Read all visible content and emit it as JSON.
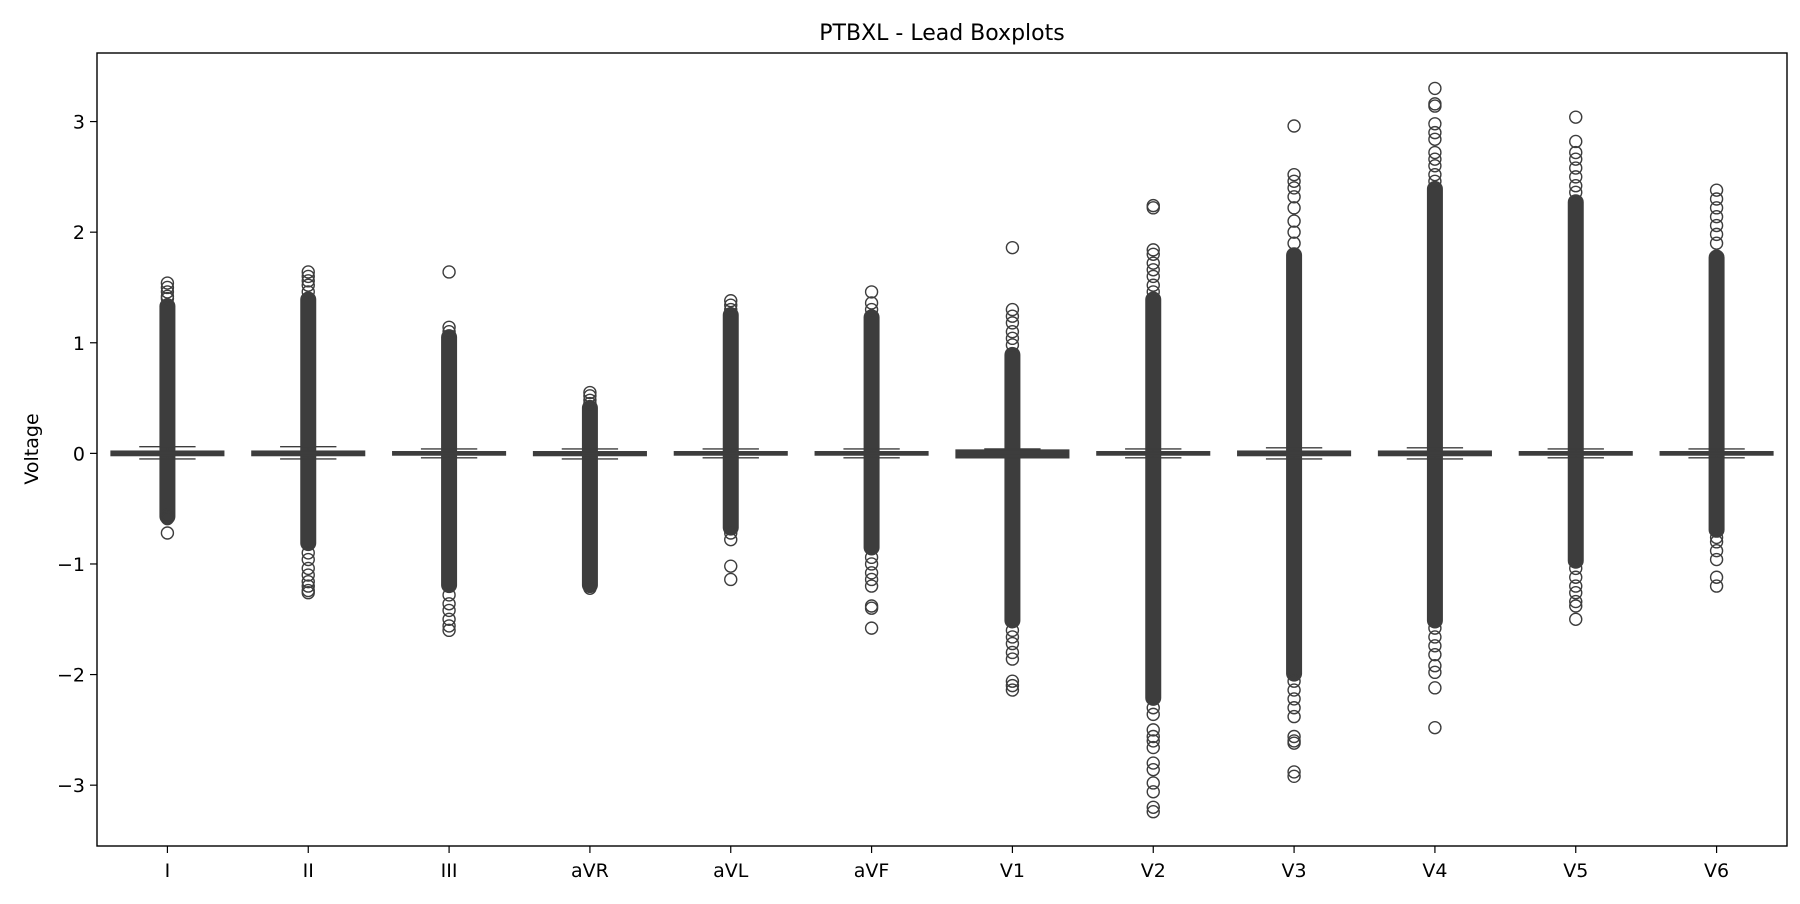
{
  "chart_data": {
    "type": "box",
    "title": "PTBXL - Lead Boxplots",
    "xlabel": "",
    "ylabel": "Voltage",
    "ylim": [
      -3.55,
      3.62
    ],
    "yticks": [
      3,
      2,
      1,
      0,
      -1,
      -2,
      -3
    ],
    "ytick_labels": [
      "3",
      "2",
      "1",
      "0",
      "−1",
      "−2",
      "−3"
    ],
    "grid": false,
    "legend": "none",
    "colors": {
      "box": "#3d3d3d",
      "axis": "#000000",
      "background": "#ffffff"
    },
    "categories": [
      "I",
      "II",
      "III",
      "aVR",
      "aVL",
      "aVF",
      "V1",
      "V2",
      "V3",
      "V4",
      "V5",
      "V6"
    ],
    "boxes": [
      {
        "category": "I",
        "q1": -0.02,
        "median": 0.0,
        "q3": 0.02,
        "whisker_low": -0.05,
        "whisker_high": 0.06,
        "flier_band": [
          -0.58,
          1.34
        ],
        "fliers": [
          1.54,
          1.5,
          1.46,
          1.42,
          1.4,
          -0.56,
          -0.59,
          -0.72
        ]
      },
      {
        "category": "II",
        "q1": -0.02,
        "median": 0.0,
        "q3": 0.02,
        "whisker_low": -0.05,
        "whisker_high": 0.06,
        "flier_band": [
          -0.82,
          1.4
        ],
        "fliers": [
          1.64,
          1.6,
          1.56,
          1.52,
          1.46,
          -0.9,
          -0.96,
          -1.04,
          -1.1,
          -1.16,
          -1.2,
          -1.24,
          -1.26
        ]
      },
      {
        "category": "III",
        "q1": -0.015,
        "median": 0.0,
        "q3": 0.015,
        "whisker_low": -0.04,
        "whisker_high": 0.04,
        "flier_band": [
          -1.2,
          1.06
        ],
        "fliers": [
          1.64,
          1.14,
          1.1,
          -1.28,
          -1.36,
          -1.42,
          -1.5,
          -1.56,
          -1.6
        ]
      },
      {
        "category": "aVR",
        "q1": -0.02,
        "median": 0.0,
        "q3": 0.015,
        "whisker_low": -0.05,
        "whisker_high": 0.04,
        "flier_band": [
          -1.2,
          0.42
        ],
        "fliers": [
          0.55,
          0.52,
          0.48,
          0.45,
          -1.22
        ]
      },
      {
        "category": "aVL",
        "q1": -0.015,
        "median": 0.0,
        "q3": 0.015,
        "whisker_low": -0.04,
        "whisker_high": 0.04,
        "flier_band": [
          -0.68,
          1.26
        ],
        "fliers": [
          1.38,
          1.34,
          1.3,
          -0.72,
          -0.78,
          -1.02,
          -1.14
        ]
      },
      {
        "category": "aVF",
        "q1": -0.015,
        "median": 0.0,
        "q3": 0.015,
        "whisker_low": -0.04,
        "whisker_high": 0.04,
        "flier_band": [
          -0.86,
          1.24
        ],
        "fliers": [
          1.46,
          1.36,
          1.3,
          -0.94,
          -1.0,
          -1.08,
          -1.14,
          -1.2,
          -1.38,
          -1.4,
          -1.58
        ]
      },
      {
        "category": "V1",
        "q1": -0.04,
        "median": 0.0,
        "q3": 0.03,
        "whisker_low": -0.04,
        "whisker_high": 0.04,
        "flier_band": [
          -1.52,
          0.9
        ],
        "fliers": [
          1.86,
          1.3,
          1.24,
          1.18,
          1.1,
          1.04,
          0.98,
          -1.6,
          -1.66,
          -1.72,
          -1.8,
          -1.86,
          -2.06,
          -2.1,
          -2.14
        ]
      },
      {
        "category": "V2",
        "q1": -0.015,
        "median": 0.0,
        "q3": 0.015,
        "whisker_low": -0.04,
        "whisker_high": 0.04,
        "flier_band": [
          -2.22,
          1.4
        ],
        "fliers": [
          2.24,
          2.22,
          1.84,
          1.8,
          1.72,
          1.66,
          1.6,
          1.52,
          1.46,
          -2.3,
          -2.36,
          -2.5,
          -2.56,
          -2.6,
          -2.66,
          -2.8,
          -2.86,
          -2.98,
          -3.06,
          -3.2,
          -3.24
        ]
      },
      {
        "category": "V3",
        "q1": -0.02,
        "median": 0.0,
        "q3": 0.02,
        "whisker_low": -0.05,
        "whisker_high": 0.05,
        "flier_band": [
          -2.0,
          1.8
        ],
        "fliers": [
          2.96,
          2.52,
          2.46,
          2.4,
          2.32,
          2.22,
          2.1,
          2.0,
          1.9,
          -2.06,
          -2.14,
          -2.22,
          -2.3,
          -2.38,
          -2.56,
          -2.6,
          -2.62,
          -2.88,
          -2.92
        ]
      },
      {
        "category": "V4",
        "q1": -0.02,
        "median": 0.0,
        "q3": 0.02,
        "whisker_low": -0.05,
        "whisker_high": 0.05,
        "flier_band": [
          -1.52,
          2.4
        ],
        "fliers": [
          3.3,
          3.16,
          3.14,
          2.98,
          2.9,
          2.84,
          2.72,
          2.66,
          2.6,
          2.52,
          2.46,
          -1.58,
          -1.66,
          -1.74,
          -1.82,
          -1.92,
          -1.98,
          -2.12,
          -2.48
        ]
      },
      {
        "category": "V5",
        "q1": -0.015,
        "median": 0.0,
        "q3": 0.015,
        "whisker_low": -0.04,
        "whisker_high": 0.04,
        "flier_band": [
          -0.98,
          2.28
        ],
        "fliers": [
          3.04,
          2.82,
          2.72,
          2.66,
          2.58,
          2.5,
          2.42,
          2.36,
          -1.04,
          -1.12,
          -1.2,
          -1.26,
          -1.34,
          -1.38,
          -1.5
        ]
      },
      {
        "category": "V6",
        "q1": -0.015,
        "median": 0.0,
        "q3": 0.015,
        "whisker_low": -0.04,
        "whisker_high": 0.04,
        "flier_band": [
          -0.7,
          1.78
        ],
        "fliers": [
          2.38,
          2.3,
          2.22,
          2.14,
          2.06,
          1.98,
          1.9,
          -0.76,
          -0.8,
          -0.88,
          -0.96,
          -1.12,
          -1.2
        ]
      }
    ]
  }
}
